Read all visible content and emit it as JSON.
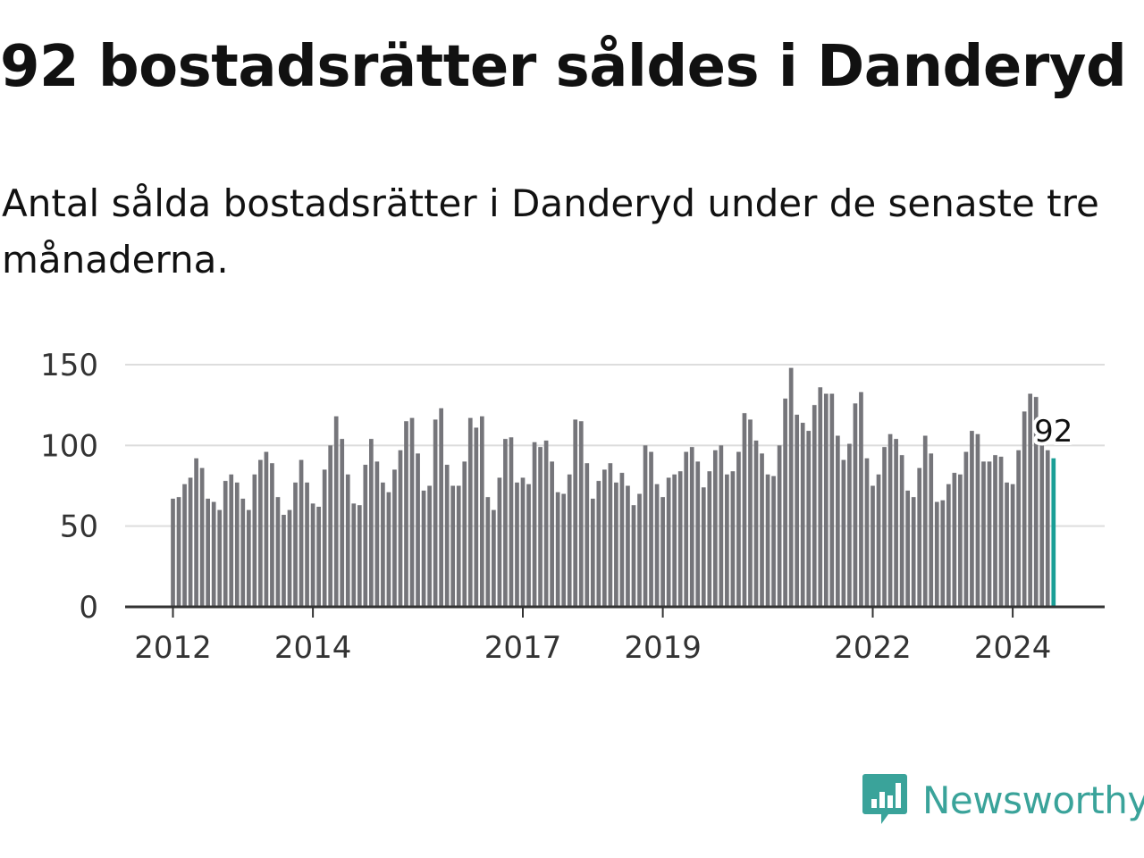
{
  "title": "92 bostadsrätter såldes i Danderyd",
  "subtitle": "Antal sålda bostadsrätter i Danderyd under de senaste tre månaderna.",
  "logo": {
    "text": "Newsworthy",
    "icon": "newsworthy-chart-icon"
  },
  "colors": {
    "bar": "#75757a",
    "highlight": "#1a9e96",
    "grid": "#dddddd",
    "axis": "#333333",
    "brand": "#3aa39a"
  },
  "chart_data": {
    "type": "bar",
    "title": "92 bostadsrätter såldes i Danderyd",
    "xlabel": "",
    "ylabel": "",
    "ylim": [
      0,
      150
    ],
    "yticks": [
      0,
      50,
      100,
      150
    ],
    "grid": true,
    "xticks": [
      {
        "label": "2012",
        "index": 0
      },
      {
        "label": "2014",
        "index": 24
      },
      {
        "label": "2017",
        "index": 60
      },
      {
        "label": "2019",
        "index": 84
      },
      {
        "label": "2022",
        "index": 120
      },
      {
        "label": "2024",
        "index": 144
      }
    ],
    "values": [
      67,
      68,
      76,
      80,
      92,
      86,
      67,
      65,
      60,
      78,
      82,
      77,
      67,
      60,
      82,
      91,
      96,
      89,
      68,
      57,
      60,
      77,
      91,
      77,
      64,
      62,
      85,
      100,
      118,
      104,
      82,
      64,
      63,
      88,
      104,
      90,
      77,
      71,
      85,
      97,
      115,
      117,
      95,
      72,
      75,
      116,
      123,
      88,
      75,
      75,
      90,
      117,
      111,
      118,
      68,
      60,
      80,
      104,
      105,
      77,
      80,
      76,
      102,
      99,
      103,
      90,
      71,
      70,
      82,
      116,
      115,
      89,
      67,
      78,
      85,
      89,
      77,
      83,
      75,
      63,
      70,
      100,
      96,
      76,
      68,
      80,
      82,
      84,
      96,
      99,
      90,
      74,
      84,
      97,
      100,
      82,
      84,
      96,
      120,
      116,
      103,
      95,
      82,
      81,
      100,
      129,
      148,
      119,
      114,
      109,
      125,
      136,
      132,
      132,
      106,
      91,
      101,
      126,
      133,
      92,
      75,
      82,
      99,
      107,
      104,
      94,
      72,
      68,
      86,
      106,
      95,
      65,
      66,
      76,
      83,
      82,
      96,
      109,
      107,
      90,
      90,
      94,
      93,
      77,
      76,
      97,
      121,
      132,
      130,
      103,
      97,
      92
    ],
    "highlight": {
      "index": 151,
      "value": 92,
      "label": "92"
    }
  }
}
